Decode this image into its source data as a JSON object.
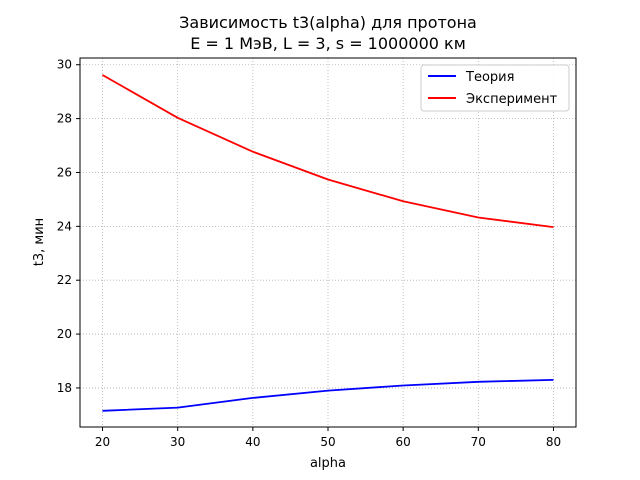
{
  "chart_data": {
    "type": "line",
    "title": "Зависимость t3(alpha) для протона",
    "subtitle": "E = 1 МэВ, L = 3, s = 1000000 км",
    "xlabel": "alpha",
    "ylabel": "t3, мин",
    "x": [
      20,
      30,
      40,
      50,
      60,
      70,
      80
    ],
    "xlim": [
      17,
      83
    ],
    "ylim": [
      16.55,
      30.25
    ],
    "xticks": [
      20,
      30,
      40,
      50,
      60,
      70,
      80
    ],
    "yticks": [
      18,
      20,
      22,
      24,
      26,
      28,
      30
    ],
    "grid": true,
    "legend_position": "top-right",
    "series": [
      {
        "name": "Теория",
        "color": "#0000ff",
        "values": [
          17.15,
          17.27,
          17.63,
          17.9,
          18.09,
          18.23,
          18.3
        ]
      },
      {
        "name": "Эксперимент",
        "color": "#ff0000",
        "values": [
          29.62,
          28.03,
          26.77,
          25.74,
          24.93,
          24.33,
          23.97
        ]
      }
    ]
  }
}
